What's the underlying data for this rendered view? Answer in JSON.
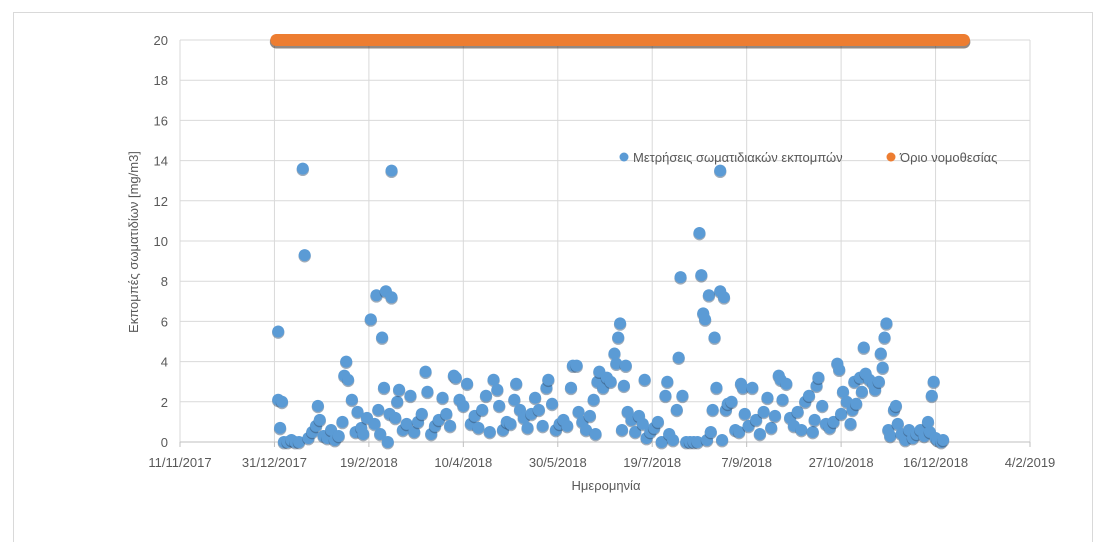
{
  "chart_data": {
    "type": "scatter",
    "xlabel": "Ημερομηνία",
    "ylabel": "Εκπομπές σωματιδίων [mg/m3]",
    "x_ticks": [
      "11/11/2017",
      "31/12/2017",
      "19/2/2018",
      "10/4/2018",
      "30/5/2018",
      "19/7/2018",
      "7/9/2018",
      "27/10/2018",
      "16/12/2018",
      "4/2/2019"
    ],
    "xlim": [
      "2017-11-11",
      "2019-02-04"
    ],
    "ylim": [
      0,
      20
    ],
    "y_ticks": [
      0,
      2,
      4,
      6,
      8,
      10,
      12,
      14,
      16,
      18,
      20
    ],
    "grid": "on",
    "legend_position": "top-right",
    "colors": {
      "measurements": "#5b9bd5",
      "limit": "#ed7d31",
      "grid": "#d9d9d9",
      "axis_text": "#595959"
    },
    "series": [
      {
        "name": "Μετρήσεις σωματιδιακών εκπομπών",
        "kind": "markers",
        "points": [
          [
            "2018-01-02",
            5.5
          ],
          [
            "2018-01-02",
            2.1
          ],
          [
            "2018-01-03",
            0.7
          ],
          [
            "2018-01-04",
            2.0
          ],
          [
            "2018-01-05",
            0.0
          ],
          [
            "2018-01-07",
            0.0
          ],
          [
            "2018-01-09",
            0.1
          ],
          [
            "2018-01-11",
            0.0
          ],
          [
            "2018-01-13",
            0.0
          ],
          [
            "2018-01-15",
            13.6
          ],
          [
            "2018-01-16",
            9.3
          ],
          [
            "2018-01-18",
            0.2
          ],
          [
            "2018-01-20",
            0.5
          ],
          [
            "2018-01-22",
            0.8
          ],
          [
            "2018-01-23",
            1.8
          ],
          [
            "2018-01-24",
            1.1
          ],
          [
            "2018-01-26",
            0.3
          ],
          [
            "2018-01-28",
            0.2
          ],
          [
            "2018-01-30",
            0.6
          ],
          [
            "2018-02-01",
            0.1
          ],
          [
            "2018-02-03",
            0.3
          ],
          [
            "2018-02-05",
            1.0
          ],
          [
            "2018-02-06",
            3.3
          ],
          [
            "2018-02-07",
            4.0
          ],
          [
            "2018-02-08",
            3.1
          ],
          [
            "2018-02-10",
            2.1
          ],
          [
            "2018-02-12",
            0.5
          ],
          [
            "2018-02-13",
            1.5
          ],
          [
            "2018-02-15",
            0.7
          ],
          [
            "2018-02-16",
            0.4
          ],
          [
            "2018-02-18",
            1.2
          ],
          [
            "2018-02-20",
            6.1
          ],
          [
            "2018-02-22",
            0.9
          ],
          [
            "2018-02-23",
            7.3
          ],
          [
            "2018-02-24",
            1.6
          ],
          [
            "2018-02-25",
            0.4
          ],
          [
            "2018-02-26",
            5.2
          ],
          [
            "2018-02-27",
            2.7
          ],
          [
            "2018-02-28",
            7.5
          ],
          [
            "2018-03-01",
            0.0
          ],
          [
            "2018-03-02",
            1.4
          ],
          [
            "2018-03-03",
            7.2
          ],
          [
            "2018-03-03",
            13.5
          ],
          [
            "2018-03-05",
            1.2
          ],
          [
            "2018-03-06",
            2.0
          ],
          [
            "2018-03-07",
            2.6
          ],
          [
            "2018-03-09",
            0.6
          ],
          [
            "2018-03-11",
            0.9
          ],
          [
            "2018-03-13",
            2.3
          ],
          [
            "2018-03-15",
            0.5
          ],
          [
            "2018-03-17",
            1.0
          ],
          [
            "2018-03-19",
            1.4
          ],
          [
            "2018-03-21",
            3.5
          ],
          [
            "2018-03-22",
            2.5
          ],
          [
            "2018-03-24",
            0.4
          ],
          [
            "2018-03-26",
            0.8
          ],
          [
            "2018-03-28",
            1.1
          ],
          [
            "2018-03-30",
            2.2
          ],
          [
            "2018-04-01",
            1.4
          ],
          [
            "2018-04-03",
            0.8
          ],
          [
            "2018-04-05",
            3.3
          ],
          [
            "2018-04-06",
            3.2
          ],
          [
            "2018-04-08",
            2.1
          ],
          [
            "2018-04-10",
            1.8
          ],
          [
            "2018-04-12",
            2.9
          ],
          [
            "2018-04-14",
            0.9
          ],
          [
            "2018-04-16",
            1.3
          ],
          [
            "2018-04-18",
            0.7
          ],
          [
            "2018-04-20",
            1.6
          ],
          [
            "2018-04-22",
            2.3
          ],
          [
            "2018-04-24",
            0.5
          ],
          [
            "2018-04-26",
            3.1
          ],
          [
            "2018-04-28",
            2.6
          ],
          [
            "2018-04-29",
            1.8
          ],
          [
            "2018-05-01",
            0.6
          ],
          [
            "2018-05-03",
            1.0
          ],
          [
            "2018-05-05",
            0.9
          ],
          [
            "2018-05-07",
            2.1
          ],
          [
            "2018-05-08",
            2.9
          ],
          [
            "2018-05-10",
            1.6
          ],
          [
            "2018-05-12",
            1.2
          ],
          [
            "2018-05-14",
            0.7
          ],
          [
            "2018-05-16",
            1.4
          ],
          [
            "2018-05-18",
            2.2
          ],
          [
            "2018-05-20",
            1.6
          ],
          [
            "2018-05-22",
            0.8
          ],
          [
            "2018-05-24",
            2.7
          ],
          [
            "2018-05-25",
            3.1
          ],
          [
            "2018-05-27",
            1.9
          ],
          [
            "2018-05-29",
            0.6
          ],
          [
            "2018-05-31",
            0.9
          ],
          [
            "2018-06-02",
            1.1
          ],
          [
            "2018-06-04",
            0.8
          ],
          [
            "2018-06-06",
            2.7
          ],
          [
            "2018-06-07",
            3.8
          ],
          [
            "2018-06-09",
            3.8
          ],
          [
            "2018-06-10",
            1.5
          ],
          [
            "2018-06-12",
            1.0
          ],
          [
            "2018-06-14",
            0.6
          ],
          [
            "2018-06-16",
            1.3
          ],
          [
            "2018-06-18",
            2.1
          ],
          [
            "2018-06-19",
            0.4
          ],
          [
            "2018-06-20",
            3.0
          ],
          [
            "2018-06-21",
            3.5
          ],
          [
            "2018-06-23",
            2.7
          ],
          [
            "2018-06-25",
            3.2
          ],
          [
            "2018-06-27",
            3.0
          ],
          [
            "2018-06-29",
            4.4
          ],
          [
            "2018-06-30",
            3.9
          ],
          [
            "2018-07-01",
            5.2
          ],
          [
            "2018-07-02",
            5.9
          ],
          [
            "2018-07-03",
            0.6
          ],
          [
            "2018-07-04",
            2.8
          ],
          [
            "2018-07-05",
            3.8
          ],
          [
            "2018-07-06",
            1.5
          ],
          [
            "2018-07-08",
            1.1
          ],
          [
            "2018-07-10",
            0.5
          ],
          [
            "2018-07-12",
            1.3
          ],
          [
            "2018-07-14",
            0.9
          ],
          [
            "2018-07-15",
            3.1
          ],
          [
            "2018-07-16",
            0.2
          ],
          [
            "2018-07-18",
            0.5
          ],
          [
            "2018-07-20",
            0.7
          ],
          [
            "2018-07-22",
            1.0
          ],
          [
            "2018-07-24",
            0.0
          ],
          [
            "2018-07-26",
            2.3
          ],
          [
            "2018-07-27",
            3.0
          ],
          [
            "2018-07-28",
            0.4
          ],
          [
            "2018-07-30",
            0.1
          ],
          [
            "2018-08-01",
            1.6
          ],
          [
            "2018-08-02",
            4.2
          ],
          [
            "2018-08-03",
            8.2
          ],
          [
            "2018-08-04",
            2.3
          ],
          [
            "2018-08-06",
            0.0
          ],
          [
            "2018-08-08",
            0.0
          ],
          [
            "2018-08-10",
            0.0
          ],
          [
            "2018-08-12",
            0.0
          ],
          [
            "2018-08-13",
            10.4
          ],
          [
            "2018-08-14",
            8.3
          ],
          [
            "2018-08-15",
            6.4
          ],
          [
            "2018-08-16",
            6.1
          ],
          [
            "2018-08-17",
            0.1
          ],
          [
            "2018-08-18",
            7.3
          ],
          [
            "2018-08-19",
            0.5
          ],
          [
            "2018-08-20",
            1.6
          ],
          [
            "2018-08-21",
            5.2
          ],
          [
            "2018-08-22",
            2.7
          ],
          [
            "2018-08-24",
            7.5
          ],
          [
            "2018-08-24",
            13.5
          ],
          [
            "2018-08-25",
            0.1
          ],
          [
            "2018-08-26",
            7.2
          ],
          [
            "2018-08-27",
            1.6
          ],
          [
            "2018-08-28",
            1.9
          ],
          [
            "2018-08-30",
            2.0
          ],
          [
            "2018-09-01",
            0.6
          ],
          [
            "2018-09-03",
            0.5
          ],
          [
            "2018-09-04",
            2.9
          ],
          [
            "2018-09-05",
            2.7
          ],
          [
            "2018-09-06",
            1.4
          ],
          [
            "2018-09-08",
            0.8
          ],
          [
            "2018-09-10",
            2.7
          ],
          [
            "2018-09-12",
            1.1
          ],
          [
            "2018-09-14",
            0.4
          ],
          [
            "2018-09-16",
            1.5
          ],
          [
            "2018-09-18",
            2.2
          ],
          [
            "2018-09-20",
            0.7
          ],
          [
            "2018-09-22",
            1.3
          ],
          [
            "2018-09-24",
            3.3
          ],
          [
            "2018-09-25",
            3.1
          ],
          [
            "2018-09-26",
            2.1
          ],
          [
            "2018-09-28",
            2.9
          ],
          [
            "2018-09-30",
            1.2
          ],
          [
            "2018-10-02",
            0.8
          ],
          [
            "2018-10-04",
            1.5
          ],
          [
            "2018-10-06",
            0.6
          ],
          [
            "2018-10-08",
            2.0
          ],
          [
            "2018-10-10",
            2.3
          ],
          [
            "2018-10-12",
            0.5
          ],
          [
            "2018-10-13",
            1.1
          ],
          [
            "2018-10-14",
            2.8
          ],
          [
            "2018-10-15",
            3.2
          ],
          [
            "2018-10-17",
            1.8
          ],
          [
            "2018-10-19",
            0.9
          ],
          [
            "2018-10-21",
            0.7
          ],
          [
            "2018-10-23",
            1.0
          ],
          [
            "2018-10-25",
            3.9
          ],
          [
            "2018-10-26",
            3.6
          ],
          [
            "2018-10-27",
            1.4
          ],
          [
            "2018-10-28",
            2.5
          ],
          [
            "2018-10-30",
            2.0
          ],
          [
            "2018-11-01",
            0.9
          ],
          [
            "2018-11-02",
            1.6
          ],
          [
            "2018-11-03",
            3.0
          ],
          [
            "2018-11-04",
            1.9
          ],
          [
            "2018-11-06",
            3.2
          ],
          [
            "2018-11-07",
            2.5
          ],
          [
            "2018-11-08",
            4.7
          ],
          [
            "2018-11-09",
            3.4
          ],
          [
            "2018-11-11",
            3.1
          ],
          [
            "2018-11-13",
            2.9
          ],
          [
            "2018-11-14",
            2.6
          ],
          [
            "2018-11-16",
            3.0
          ],
          [
            "2018-11-17",
            4.4
          ],
          [
            "2018-11-18",
            3.7
          ],
          [
            "2018-11-19",
            5.2
          ],
          [
            "2018-11-20",
            5.9
          ],
          [
            "2018-11-21",
            0.6
          ],
          [
            "2018-11-22",
            0.3
          ],
          [
            "2018-11-24",
            1.6
          ],
          [
            "2018-11-25",
            1.8
          ],
          [
            "2018-11-26",
            0.9
          ],
          [
            "2018-11-28",
            0.4
          ],
          [
            "2018-11-30",
            0.1
          ],
          [
            "2018-12-02",
            0.6
          ],
          [
            "2018-12-04",
            0.2
          ],
          [
            "2018-12-06",
            0.4
          ],
          [
            "2018-12-08",
            0.6
          ],
          [
            "2018-12-10",
            0.3
          ],
          [
            "2018-12-12",
            1.0
          ],
          [
            "2018-12-13",
            0.5
          ],
          [
            "2018-12-14",
            2.3
          ],
          [
            "2018-12-15",
            3.0
          ],
          [
            "2018-12-16",
            0.2
          ],
          [
            "2018-12-17",
            0.1
          ],
          [
            "2018-12-19",
            0.0
          ],
          [
            "2018-12-20",
            0.1
          ]
        ]
      },
      {
        "name": "Όριο νομοθεσίας",
        "kind": "limit",
        "x_start": "2018-01-01",
        "x_end": "2018-12-31",
        "y": 20
      }
    ]
  }
}
